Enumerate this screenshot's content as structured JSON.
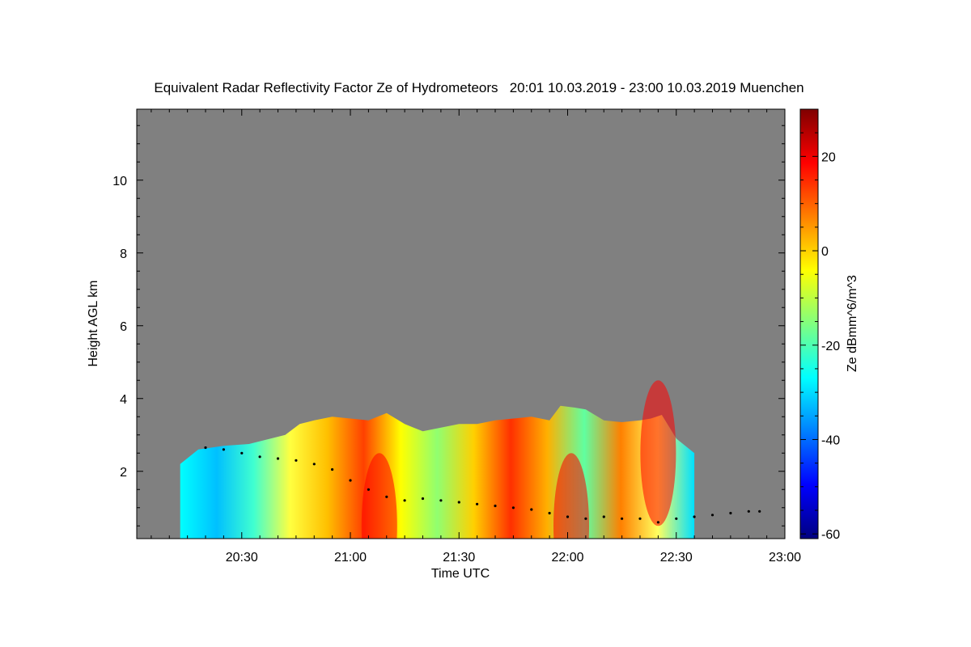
{
  "chart_data": {
    "type": "heatmap",
    "title": "Equivalent Radar Reflectivity Factor Ze of Hydrometeors   20:01 10.03.2019 - 23:00 10.03.2019 Muenchen",
    "xlabel": "Time UTC",
    "ylabel": "Height AGL km",
    "x_range_minutes_utc": [
      1201,
      1380
    ],
    "x_ticks": [
      {
        "minutes": 1230,
        "label": "20:30"
      },
      {
        "minutes": 1260,
        "label": "21:00"
      },
      {
        "minutes": 1290,
        "label": "21:30"
      },
      {
        "minutes": 1320,
        "label": "22:00"
      },
      {
        "minutes": 1350,
        "label": "22:30"
      },
      {
        "minutes": 1380,
        "label": "23:00"
      }
    ],
    "ylim": [
      0.15,
      11.95
    ],
    "y_ticks": [
      2,
      4,
      6,
      8,
      10
    ],
    "background_color": "#808080",
    "colorbar": {
      "label": "Ze dBmm^6/m^3",
      "range": [
        -61,
        30
      ],
      "ticks": [
        -60,
        -40,
        -20,
        0,
        20
      ],
      "colormap": [
        "#00007f",
        "#0000ff",
        "#0080ff",
        "#00ffff",
        "#80ff80",
        "#ffff00",
        "#ff8000",
        "#ff0000",
        "#7f0000"
      ]
    },
    "echo_region": {
      "time_minutes": [
        1213,
        1218,
        1225,
        1232,
        1238,
        1242,
        1246,
        1250,
        1255,
        1260,
        1265,
        1270,
        1275,
        1280,
        1285,
        1290,
        1295,
        1300,
        1305,
        1310,
        1315,
        1318,
        1322,
        1325,
        1330,
        1335,
        1340,
        1343,
        1346,
        1350,
        1355
      ],
      "top_height_km": [
        2.2,
        2.6,
        2.7,
        2.75,
        2.9,
        3.0,
        3.3,
        3.4,
        3.5,
        3.45,
        3.4,
        3.6,
        3.3,
        3.1,
        3.2,
        3.3,
        3.3,
        3.4,
        3.45,
        3.5,
        3.4,
        3.8,
        3.75,
        3.7,
        3.4,
        3.35,
        3.4,
        3.45,
        3.55,
        2.9,
        2.5
      ],
      "peak_reflectivity_dbz_examples": [
        {
          "time_minutes": 1268,
          "height_km": 0.5,
          "ze": 20
        },
        {
          "time_minutes": 1321,
          "height_km": 0.5,
          "ze": 22
        },
        {
          "time_minutes": 1345,
          "height_km": 2.5,
          "ze": 15
        }
      ]
    },
    "melting_layer_points": {
      "time_minutes": [
        1220,
        1225,
        1230,
        1235,
        1240,
        1245,
        1250,
        1255,
        1260,
        1265,
        1270,
        1275,
        1280,
        1285,
        1290,
        1295,
        1300,
        1305,
        1310,
        1315,
        1320,
        1325,
        1330,
        1335,
        1340,
        1345,
        1350,
        1355,
        1360,
        1365,
        1370,
        1373
      ],
      "height_km": [
        2.65,
        2.6,
        2.5,
        2.4,
        2.35,
        2.3,
        2.2,
        2.05,
        1.75,
        1.5,
        1.3,
        1.2,
        1.25,
        1.2,
        1.15,
        1.1,
        1.05,
        1.0,
        0.95,
        0.85,
        0.75,
        0.7,
        0.75,
        0.7,
        0.7,
        0.6,
        0.7,
        0.75,
        0.8,
        0.85,
        0.9,
        0.9
      ]
    }
  }
}
